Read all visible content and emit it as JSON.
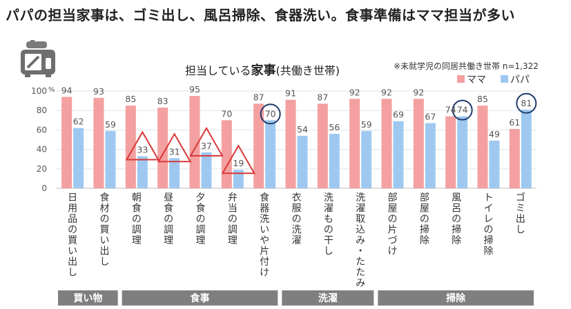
{
  "headline": "パパの担当家事は、ゴミ出し、風呂掃除、食器洗い。食事準備はママ担当が多い",
  "chart_data": {
    "type": "bar",
    "title_prefix": "担当している",
    "title_bold": "家事",
    "title_suffix": "(共働き世帯)",
    "note": "※未就学児の同居共働き世帯 n=1,322",
    "ylim": [
      0,
      100
    ],
    "yticks": [
      "0",
      "20",
      "40",
      "60",
      "80",
      "100"
    ],
    "y_unit": "%",
    "grid": true,
    "legend_position": "top-right",
    "categories": [
      "日用品の買い出し",
      "食材の買い出し",
      "朝食の調理",
      "昼食の調理",
      "夕食の調理",
      "弁当の調理",
      "食器洗いや片付け",
      "衣服の洗濯",
      "洗濯もの干し",
      "洗濯取込み・たたみ",
      "部屋の片づけ",
      "部屋の掃除",
      "風呂の掃除",
      "トイレの掃除",
      "ゴミ出し"
    ],
    "series": [
      {
        "name": "ママ",
        "color": "#f4a0a0",
        "values": [
          94,
          93,
          85,
          83,
          95,
          70,
          87,
          91,
          87,
          92,
          92,
          92,
          74,
          85,
          61
        ]
      },
      {
        "name": "パパ",
        "color": "#9ec8f0",
        "values": [
          62,
          59,
          33,
          31,
          37,
          19,
          70,
          54,
          56,
          59,
          69,
          67,
          74,
          49,
          81
        ]
      }
    ],
    "triangle_marked": [
      2,
      3,
      4,
      5
    ],
    "circle_marked": [
      6,
      12,
      14
    ],
    "groups": [
      {
        "label": "買い物",
        "start": 0,
        "end": 1
      },
      {
        "label": "食事",
        "start": 2,
        "end": 6
      },
      {
        "label": "洗濯",
        "start": 7,
        "end": 9
      },
      {
        "label": "掃除",
        "start": 10,
        "end": 14
      }
    ]
  },
  "icons": {
    "toaster": "toaster-icon"
  },
  "colors": {
    "group_band": "#7f7f7f",
    "triangle": "#d93636",
    "circle": "#1f3a6b",
    "axis": "#bfbfbf"
  }
}
